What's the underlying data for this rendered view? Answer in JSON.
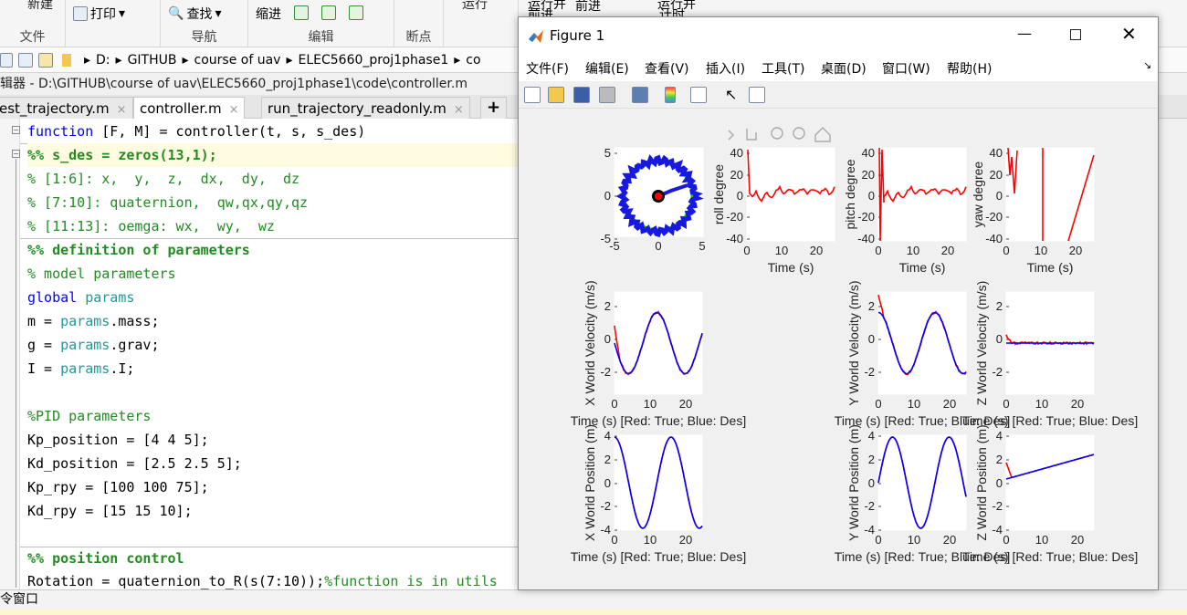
{
  "ribbon": {
    "top_cut": [
      "新建",
      "",
      "",
      ""
    ],
    "print": "打印",
    "find": "查找",
    "indent": "缩进",
    "groups": [
      "文件",
      "导航",
      "编辑",
      "断点"
    ],
    "cut_labels": [
      "运行",
      "运行并",
      "前进",
      "运行并"
    ],
    "run_advance": "前进",
    "run_time": "计时",
    "advance": "前进"
  },
  "address": {
    "crumbs": [
      "D:",
      "GITHUB",
      "course of uav",
      "ELEC5660_proj1phase1",
      "co"
    ]
  },
  "editor": {
    "title": "辑器 - D:\\GITHUB\\course of uav\\ELEC5660_proj1phase1\\code\\controller.m",
    "tabs": [
      {
        "label": "est_trajectory.m"
      },
      {
        "label": "controller.m"
      },
      {
        "label": "run_trajectory_readonly.m"
      }
    ],
    "plus": "+",
    "close": "×",
    "lines": {
      "l1a": "function",
      "l1b": " [F, M] = controller(t, s, s_des)",
      "l2": "%% s_des = zeros(13,1);",
      "l3": "% [1:6]: x,  y,  z,  dx,  dy,  dz",
      "l4": "% [7:10]: quaternion,  qw,qx,qy,qz",
      "l5": "% [11:13]: oemga: wx,  wy,  wz",
      "l6": "%% definition of parameters",
      "l7": "% model parameters",
      "l8a": "global",
      "l8b": " params",
      "l9a": "m = ",
      "l9b": "params",
      ".mass": ".mass;",
      "l10a": "g = ",
      "l10b": "params",
      "l10c": ".grav;",
      "l11a": "I = ",
      "l11b": "params",
      "l11c": ".I;",
      "l13": "%PID parameters",
      "l14": "Kp_position = [4 4 5];",
      "l15": "Kd_position = [2.5 2.5 5];",
      "l16": "Kp_rpy = [100 100 75];",
      "l17": "Kd_rpy = [15 15 10];",
      "l19": "%% position control",
      "l20a": "Rotation = quaternion_to_R(s(7:10));",
      "l20b": "%function is in utils"
    }
  },
  "command_window": {
    "label": "令窗口"
  },
  "figure": {
    "title": "Figure 1",
    "menu": [
      "文件(F)",
      "编辑(E)",
      "查看(V)",
      "插入(I)",
      "工具(T)",
      "桌面(D)",
      "窗口(W)",
      "帮助(H)"
    ],
    "axes": {
      "circle": {
        "xticks": [
          "-5",
          "0",
          "5"
        ],
        "yticks": [
          "5",
          "0",
          "-5"
        ]
      },
      "roll": {
        "ylabel": "roll degree",
        "xlabel": "Time (s)",
        "yticks": [
          "40",
          "20",
          "0",
          "-20",
          "-40"
        ],
        "xticks": [
          "0",
          "10",
          "20"
        ]
      },
      "pitch": {
        "ylabel": "pitch degree",
        "xlabel": "Time (s)",
        "yticks": [
          "40",
          "20",
          "0",
          "-20",
          "-40"
        ],
        "xticks": [
          "0",
          "10",
          "20"
        ]
      },
      "yaw": {
        "ylabel": "yaw degree",
        "xlabel": "Time (s)",
        "yticks": [
          "40",
          "20",
          "0",
          "-20",
          "-40"
        ],
        "xticks": [
          "0",
          "10",
          "20"
        ]
      },
      "xvel": {
        "ylabel": "X World Velocity (m/s)",
        "xlabel": "Time (s) [Red: True; Blue: Des]",
        "yticks": [
          "2",
          "0",
          "-2"
        ],
        "xticks": [
          "0",
          "10",
          "20"
        ]
      },
      "yvel": {
        "ylabel": "Y World Velocity (m/s)",
        "xlabel": "Time (s) [Red: True; Blue: Des]",
        "yticks": [
          "2",
          "0",
          "-2"
        ],
        "xticks": [
          "0",
          "10",
          "20"
        ]
      },
      "zvel": {
        "ylabel": "Z World Velocity (m/s)",
        "xlabel": "Time (s) [Red: True; Blue: Des]",
        "yticks": [
          "2",
          "0",
          "-2"
        ],
        "xticks": [
          "0",
          "10",
          "20"
        ]
      },
      "xpos": {
        "ylabel": "X World Position (m)",
        "xlabel": "Time (s) [Red: True; Blue: Des]",
        "yticks": [
          "4",
          "2",
          "0",
          "-2",
          "-4"
        ],
        "xticks": [
          "0",
          "10",
          "20"
        ]
      },
      "ypos": {
        "ylabel": "Y World Position (m)",
        "xlabel": "Time (s) [Red: True; Blue: Des]",
        "yticks": [
          "4",
          "2",
          "0",
          "-2",
          "-4"
        ],
        "xticks": [
          "0",
          "10",
          "20"
        ]
      },
      "zpos": {
        "ylabel": "Z World Position (m)",
        "xlabel": "Time (s) [Red: True; Blue: Des]",
        "yticks": [
          "4",
          "2",
          "0",
          "-2",
          "-4"
        ],
        "xticks": [
          "0",
          "10",
          "20"
        ]
      }
    }
  },
  "colors": {
    "true": "#ff0000",
    "des": "#0000ff",
    "circle": "#00e000",
    "keyword": "#0000ff",
    "comment": "#228b22"
  }
}
